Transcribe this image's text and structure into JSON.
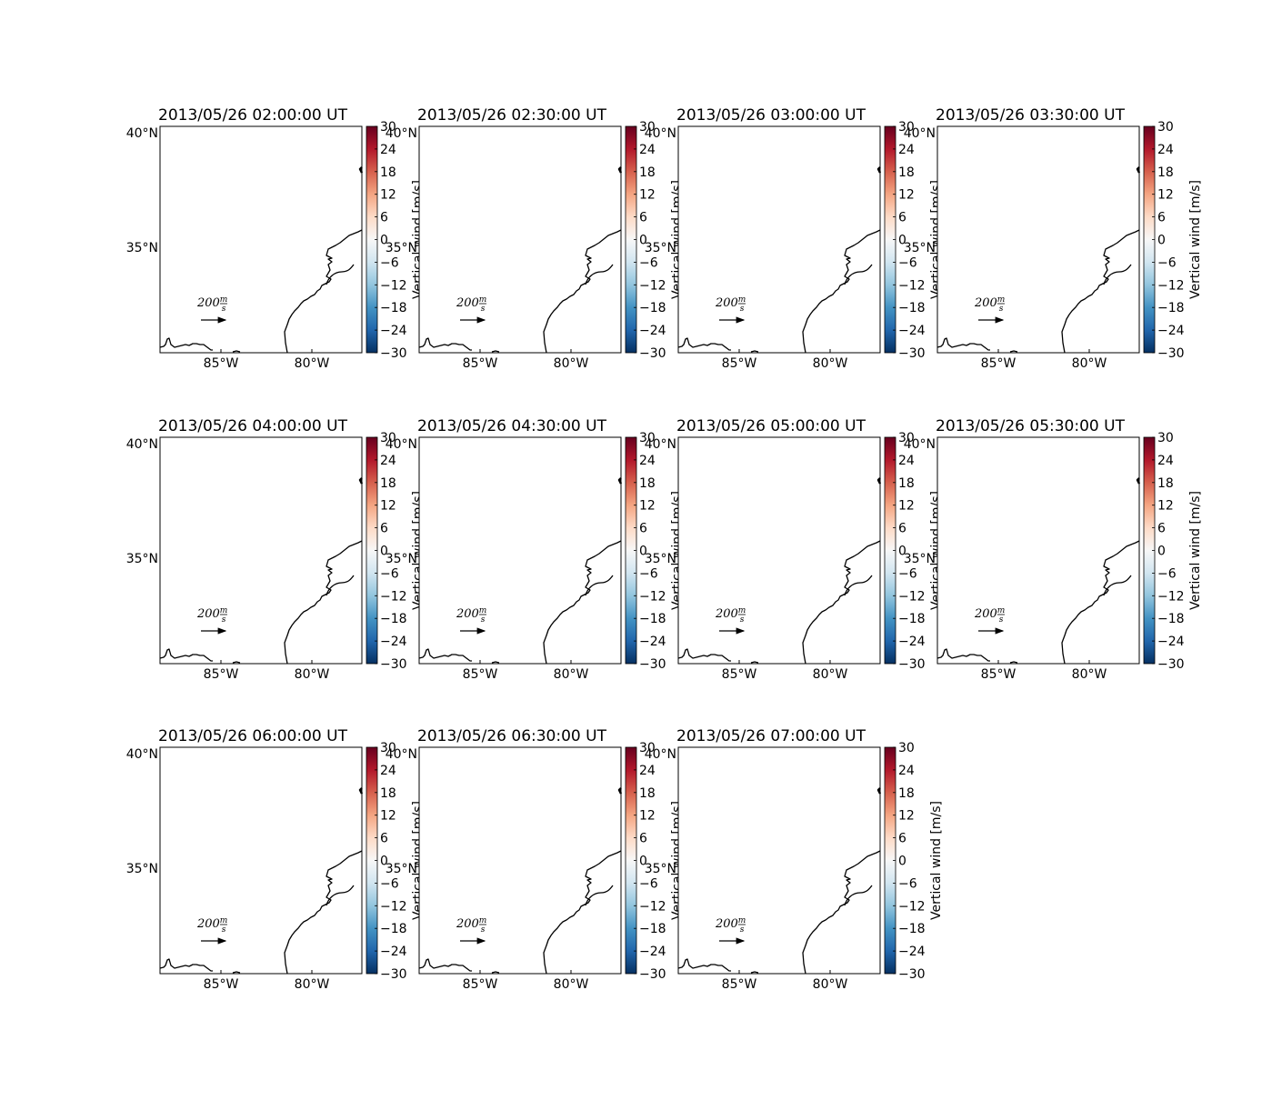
{
  "figure": {
    "panels": [
      {
        "title": "2013/05/26 02:00:00 UT"
      },
      {
        "title": "2013/05/26 02:30:00 UT"
      },
      {
        "title": "2013/05/26 03:00:00 UT"
      },
      {
        "title": "2013/05/26 03:30:00 UT"
      },
      {
        "title": "2013/05/26 04:00:00 UT"
      },
      {
        "title": "2013/05/26 04:30:00 UT"
      },
      {
        "title": "2013/05/26 05:00:00 UT"
      },
      {
        "title": "2013/05/26 05:30:00 UT"
      },
      {
        "title": "2013/05/26 06:00:00 UT"
      },
      {
        "title": "2013/05/26 06:30:00 UT"
      },
      {
        "title": "2013/05/26 07:00:00 UT"
      }
    ],
    "lat_labels": [
      "40°N",
      "35°N"
    ],
    "lon_labels": [
      "85°W",
      "80°W"
    ],
    "quiver_key": {
      "value": "200",
      "unit_num": "m",
      "unit_den": "s"
    },
    "colorbar": {
      "label": "Vertical wind [m/s]",
      "ticks": [
        "30",
        "24",
        "18",
        "12",
        "6",
        "0",
        "−6",
        "−12",
        "−18",
        "−24",
        "−30"
      ],
      "colormap": "RdBu_r",
      "range": [
        -30,
        30
      ]
    },
    "colors": {
      "coastline": "#000000",
      "ocean_land": "#ffffff"
    }
  }
}
